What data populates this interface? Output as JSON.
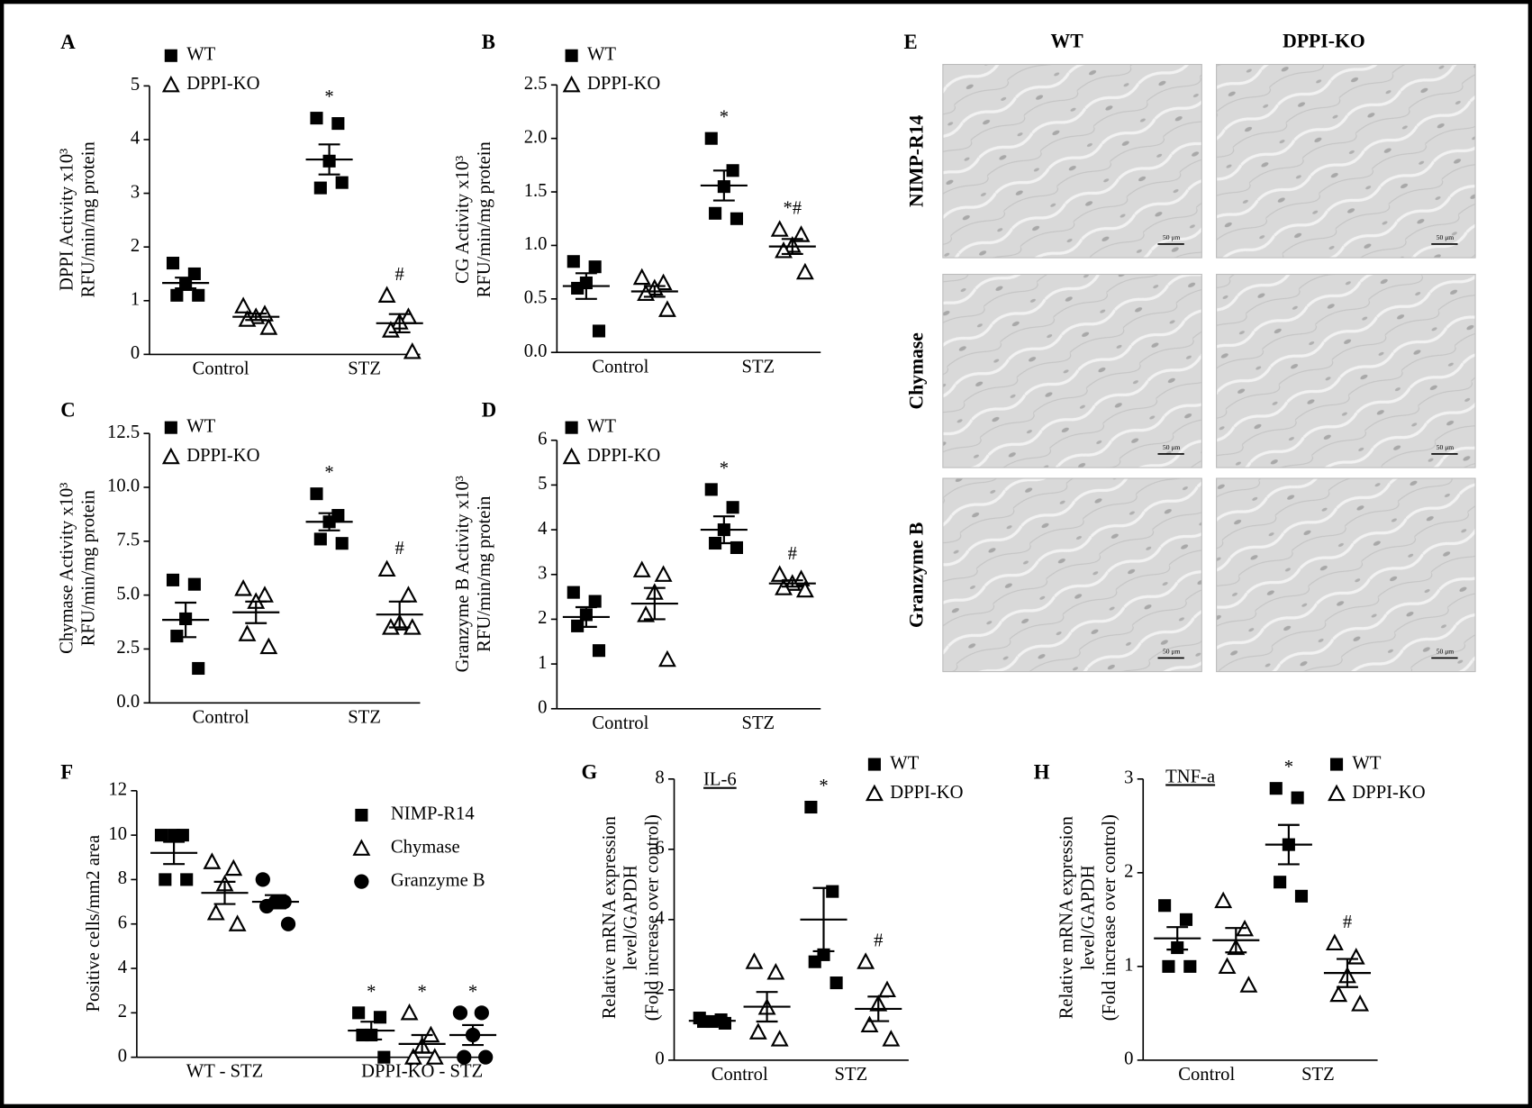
{
  "chart_data": [
    {
      "type": "dotplot",
      "panel": "A",
      "ylabel": [
        "DPPI Activity x10³",
        "RFU/min/mg protein"
      ],
      "categories": [
        "Control",
        "STZ"
      ],
      "ylim": [
        0,
        5
      ],
      "yticks": [
        0,
        1,
        2,
        3,
        4,
        5
      ],
      "series": [
        {
          "name": "WT",
          "marker": "square",
          "color": "#000000",
          "points": [
            [
              1.7,
              1.5,
              1.3,
              1.1,
              1.1
            ],
            [
              4.4,
              4.3,
              3.6,
              3.1,
              3.2
            ]
          ],
          "means": [
            1.33,
            3.63
          ],
          "sem": [
            0.1,
            0.28
          ],
          "annotations": [
            null,
            "*"
          ]
        },
        {
          "name": "DPPI-KO",
          "marker": "triangle",
          "color": "#000000",
          "points": [
            [
              0.9,
              0.75,
              0.7,
              0.65,
              0.5
            ],
            [
              1.1,
              0.7,
              0.6,
              0.45,
              0.05
            ]
          ],
          "means": [
            0.7,
            0.58
          ],
          "sem": [
            0.06,
            0.17
          ],
          "annotations": [
            null,
            "#"
          ]
        }
      ]
    },
    {
      "type": "dotplot",
      "panel": "B",
      "ylabel": [
        "CG Activity x10³",
        "RFU/min/mg protein"
      ],
      "categories": [
        "Control",
        "STZ"
      ],
      "ylim": [
        0,
        2.5
      ],
      "yticks": [
        {
          "value": 0,
          "label": "0.0"
        },
        0.5,
        {
          "value": 1,
          "label": "1.0"
        },
        1.5,
        {
          "value": 2,
          "label": "2.0"
        },
        2.5
      ],
      "series": [
        {
          "name": "WT",
          "marker": "square",
          "color": "#000000",
          "points": [
            [
              0.85,
              0.8,
              0.65,
              0.6,
              0.2
            ],
            [
              2.0,
              1.7,
              1.55,
              1.3,
              1.25
            ]
          ],
          "means": [
            0.62,
            1.56
          ],
          "sem": [
            0.12,
            0.14
          ],
          "annotations": [
            null,
            "*"
          ]
        },
        {
          "name": "DPPI-KO",
          "marker": "triangle",
          "color": "#000000",
          "points": [
            [
              0.7,
              0.65,
              0.6,
              0.55,
              0.4
            ],
            [
              1.15,
              1.1,
              1.0,
              0.95,
              0.75
            ]
          ],
          "means": [
            0.57,
            0.99
          ],
          "sem": [
            0.05,
            0.07
          ],
          "annotations": [
            null,
            "*#"
          ]
        }
      ]
    },
    {
      "type": "dotplot",
      "panel": "C",
      "ylabel": [
        "Chymase Activity x10³",
        "RFU/min/mg protein"
      ],
      "categories": [
        "Control",
        "STZ"
      ],
      "ylim": [
        0,
        12.5
      ],
      "yticks": [
        {
          "value": 0,
          "label": "0.0"
        },
        2.5,
        {
          "value": 5,
          "label": "5.0"
        },
        7.5,
        {
          "value": 10,
          "label": "10.0"
        },
        12.5
      ],
      "series": [
        {
          "name": "WT",
          "marker": "square",
          "color": "#000000",
          "points": [
            [
              5.7,
              5.5,
              3.9,
              3.1,
              1.6
            ],
            [
              9.7,
              8.7,
              8.4,
              7.6,
              7.4
            ]
          ],
          "means": [
            3.85,
            8.4
          ],
          "sem": [
            0.8,
            0.4
          ],
          "annotations": [
            null,
            "*"
          ]
        },
        {
          "name": "DPPI-KO",
          "marker": "triangle",
          "color": "#000000",
          "points": [
            [
              5.3,
              5.0,
              4.7,
              3.2,
              2.6
            ],
            [
              6.2,
              5.0,
              3.7,
              3.5,
              3.5
            ]
          ],
          "means": [
            4.2,
            4.1
          ],
          "sem": [
            0.5,
            0.6
          ],
          "annotations": [
            null,
            "#"
          ]
        }
      ]
    },
    {
      "type": "dotplot",
      "panel": "D",
      "ylabel": [
        "Granzyme B Activity x10³",
        "RFU/min/mg protein"
      ],
      "categories": [
        "Control",
        "STZ"
      ],
      "ylim": [
        0,
        6
      ],
      "yticks": [
        0,
        1,
        2,
        3,
        4,
        5,
        6
      ],
      "series": [
        {
          "name": "WT",
          "marker": "square",
          "color": "#000000",
          "points": [
            [
              2.6,
              2.4,
              2.1,
              1.85,
              1.3
            ],
            [
              4.9,
              4.5,
              4.0,
              3.7,
              3.6
            ]
          ],
          "means": [
            2.05,
            4.0
          ],
          "sem": [
            0.22,
            0.3
          ],
          "annotations": [
            null,
            "*"
          ]
        },
        {
          "name": "DPPI-KO",
          "marker": "triangle",
          "color": "#000000",
          "points": [
            [
              3.1,
              3.0,
              2.6,
              2.1,
              1.1
            ],
            [
              3.0,
              2.9,
              2.8,
              2.7,
              2.65
            ]
          ],
          "means": [
            2.35,
            2.8
          ],
          "sem": [
            0.35,
            0.07
          ],
          "annotations": [
            null,
            "#"
          ]
        }
      ]
    },
    {
      "type": "dotplot",
      "panel": "F",
      "ylabel": [
        "Positive cells/mm2 area"
      ],
      "categories": [
        "WT - STZ",
        "DPPI-KO - STZ"
      ],
      "ylim": [
        0,
        12
      ],
      "yticks": [
        0,
        2,
        4,
        6,
        8,
        10,
        12
      ],
      "series": [
        {
          "name": "NIMP-R14",
          "marker": "square",
          "color": "#000000",
          "points": [
            [
              10,
              10,
              10,
              8,
              8
            ],
            [
              2,
              1.8,
              1,
              1,
              0
            ]
          ],
          "means": [
            9.2,
            1.2
          ],
          "sem": [
            0.5,
            0.4
          ],
          "annotations": [
            null,
            "*"
          ]
        },
        {
          "name": "Chymase",
          "marker": "triangle",
          "color": "#000000",
          "points": [
            [
              8.8,
              8.5,
              7.8,
              6.5,
              6
            ],
            [
              2,
              1,
              0.5,
              0,
              0
            ]
          ],
          "means": [
            7.4,
            0.6
          ],
          "sem": [
            0.5,
            0.4
          ],
          "annotations": [
            null,
            "*"
          ]
        },
        {
          "name": "Granzyme B",
          "marker": "circle",
          "color": "#000000",
          "points": [
            [
              8,
              7,
              7,
              6.8,
              6
            ],
            [
              2,
              2,
              1,
              0,
              0
            ]
          ],
          "means": [
            7,
            1
          ],
          "sem": [
            0.3,
            0.45
          ],
          "annotations": [
            null,
            "*"
          ]
        }
      ]
    },
    {
      "type": "dotplot",
      "panel": "G",
      "subtitle": "IL-6",
      "ylabel": [
        "Relative mRNA expression",
        "level/GAPDH",
        "(Fold increase over control)"
      ],
      "categories": [
        "Control",
        "STZ"
      ],
      "ylim": [
        0,
        8
      ],
      "yticks": [
        0,
        2,
        4,
        6,
        8
      ],
      "series": [
        {
          "name": "WT",
          "marker": "square",
          "color": "#000000",
          "points": [
            [
              1.2,
              1.15,
              1.1,
              1.1,
              1.05
            ],
            [
              7.2,
              4.8,
              3.0,
              2.8,
              2.2
            ]
          ],
          "means": [
            1.12,
            4.0
          ],
          "sem": [
            0.03,
            0.9
          ],
          "annotations": [
            null,
            "*"
          ]
        },
        {
          "name": "DPPI-KO",
          "marker": "triangle",
          "color": "#000000",
          "points": [
            [
              2.8,
              2.5,
              1.5,
              0.8,
              0.6
            ],
            [
              2.8,
              2.0,
              1.6,
              1.0,
              0.6
            ]
          ],
          "means": [
            1.52,
            1.46
          ],
          "sem": [
            0.42,
            0.35
          ],
          "annotations": [
            null,
            "#"
          ]
        }
      ]
    },
    {
      "type": "dotplot",
      "panel": "H",
      "subtitle": "TNF-a",
      "ylabel": [
        "Relative mRNA expression",
        "level/GAPDH",
        "(Fold increase over control)"
      ],
      "categories": [
        "Control",
        "STZ"
      ],
      "ylim": [
        0,
        3
      ],
      "yticks": [
        0,
        1,
        2,
        3
      ],
      "series": [
        {
          "name": "WT",
          "marker": "square",
          "color": "#000000",
          "points": [
            [
              1.65,
              1.5,
              1.2,
              1.0,
              1.0
            ],
            [
              2.9,
              2.8,
              2.3,
              1.9,
              1.75
            ]
          ],
          "means": [
            1.3,
            2.3
          ],
          "sem": [
            0.12,
            0.21
          ],
          "annotations": [
            null,
            "*"
          ]
        },
        {
          "name": "DPPI-KO",
          "marker": "triangle",
          "color": "#000000",
          "points": [
            [
              1.7,
              1.4,
              1.2,
              1.0,
              0.8
            ],
            [
              1.25,
              1.1,
              0.9,
              0.7,
              0.6
            ]
          ],
          "means": [
            1.28,
            0.93
          ],
          "sem": [
            0.13,
            0.15
          ],
          "annotations": [
            null,
            "#"
          ]
        }
      ]
    }
  ],
  "histology": {
    "panel": "E",
    "columns": [
      "WT",
      "DPPI-KO"
    ],
    "rows": [
      "NIMP-R14",
      "Chymase",
      "Granzyme B"
    ],
    "scale_bar": "50 μm"
  }
}
